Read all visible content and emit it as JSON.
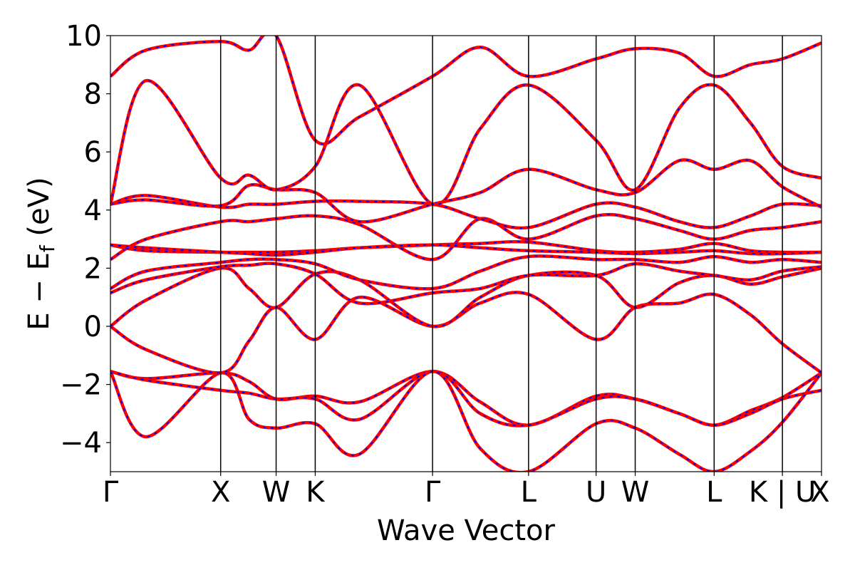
{
  "chart_data": {
    "type": "line",
    "xlabel": "Wave Vector",
    "ylabel": "E − E",
    "ylabel_sub": "f",
    "ylabel_unit": " (eV)",
    "ylim": [
      -5,
      10
    ],
    "xlim": [
      0,
      1
    ],
    "grid": false,
    "yticks": [
      {
        "value": 10,
        "label": "10"
      },
      {
        "value": 8,
        "label": "8"
      },
      {
        "value": 6,
        "label": "6"
      },
      {
        "value": 4,
        "label": "4"
      },
      {
        "value": 2,
        "label": "2"
      },
      {
        "value": 0,
        "label": "0"
      },
      {
        "value": -2,
        "label": "−2"
      },
      {
        "value": -4,
        "label": "−4"
      }
    ],
    "kpoints": [
      {
        "label": "Γ",
        "x": 0.0
      },
      {
        "label": "X",
        "x": 0.155
      },
      {
        "label": "W",
        "x": 0.233
      },
      {
        "label": "K",
        "x": 0.288
      },
      {
        "label": "Γ",
        "x": 0.453
      },
      {
        "label": "L",
        "x": 0.588
      },
      {
        "label": "U",
        "x": 0.683
      },
      {
        "label": "W",
        "x": 0.738
      },
      {
        "label": "L",
        "x": 0.849
      },
      {
        "label": "K | U",
        "x": 0.945
      },
      {
        "label": "X",
        "x": 1.0
      }
    ],
    "colors": {
      "band_solid": "#ff0000",
      "band_dashed": "#0000ff",
      "kline": "#000000"
    },
    "bands_x": [
      0.0,
      0.05,
      0.155,
      0.195,
      0.233,
      0.288,
      0.35,
      0.453,
      0.52,
      0.588,
      0.683,
      0.738,
      0.8,
      0.849,
      0.9,
      0.945,
      1.0
    ],
    "series": [
      {
        "values": [
          -1.55,
          -1.8,
          -1.6,
          -1.9,
          -2.5,
          -2.4,
          -2.6,
          -1.55,
          -2.6,
          -3.4,
          -2.4,
          -2.5,
          -3.0,
          -3.4,
          -2.9,
          -2.45,
          -1.6
        ]
      },
      {
        "values": [
          -1.55,
          -1.85,
          -2.2,
          -2.3,
          -2.5,
          -2.5,
          -3.2,
          -1.55,
          -3.0,
          -3.4,
          -2.5,
          -2.5,
          -3.0,
          -3.4,
          -3.0,
          -2.5,
          -2.2
        ]
      },
      {
        "values": [
          -1.55,
          -3.8,
          -1.6,
          -3.2,
          -3.5,
          -3.35,
          -4.4,
          -1.55,
          -4.2,
          -5.0,
          -3.35,
          -3.5,
          -4.4,
          -5.0,
          -4.3,
          -3.3,
          -1.6
        ]
      },
      {
        "values": [
          0.0,
          -0.8,
          -1.6,
          -0.5,
          0.65,
          -0.45,
          1.0,
          0.0,
          0.8,
          1.1,
          -0.45,
          0.65,
          0.8,
          1.1,
          0.4,
          -0.6,
          -1.6
        ]
      },
      {
        "values": [
          0.0,
          0.9,
          2.0,
          1.3,
          0.65,
          1.8,
          1.6,
          0.0,
          1.0,
          1.75,
          1.75,
          0.65,
          1.5,
          1.75,
          1.45,
          1.7,
          2.0
        ]
      },
      {
        "values": [
          1.15,
          1.6,
          2.05,
          2.1,
          2.15,
          1.8,
          0.8,
          1.15,
          1.3,
          1.75,
          1.75,
          2.15,
          1.9,
          1.75,
          1.6,
          1.9,
          2.05
        ]
      },
      {
        "values": [
          1.3,
          1.9,
          2.2,
          2.3,
          2.3,
          2.15,
          1.6,
          1.3,
          1.9,
          2.4,
          2.3,
          2.3,
          2.2,
          2.4,
          2.2,
          2.3,
          2.2
        ]
      },
      {
        "values": [
          2.3,
          3.0,
          3.6,
          3.6,
          3.7,
          3.8,
          3.5,
          2.3,
          3.7,
          3.0,
          3.8,
          3.7,
          3.3,
          3.0,
          3.3,
          3.4,
          3.6
        ]
      },
      {
        "values": [
          2.8,
          2.6,
          2.55,
          2.55,
          2.55,
          2.6,
          2.7,
          2.8,
          2.85,
          2.9,
          2.6,
          2.55,
          2.65,
          2.85,
          2.6,
          2.55,
          2.55
        ]
      },
      {
        "values": [
          2.8,
          2.7,
          2.55,
          2.5,
          2.45,
          2.55,
          2.7,
          2.8,
          2.7,
          2.6,
          2.55,
          2.5,
          2.55,
          2.6,
          2.5,
          2.5,
          2.55
        ]
      },
      {
        "values": [
          4.2,
          4.5,
          4.1,
          4.2,
          4.2,
          4.3,
          4.3,
          4.2,
          3.7,
          3.4,
          4.2,
          4.1,
          3.6,
          3.4,
          3.8,
          4.2,
          4.15
        ]
      },
      {
        "values": [
          4.2,
          4.35,
          4.15,
          4.85,
          4.7,
          4.6,
          3.6,
          4.2,
          4.6,
          5.4,
          4.7,
          4.6,
          5.7,
          5.4,
          5.7,
          4.8,
          4.1
        ]
      },
      {
        "values": [
          4.2,
          8.45,
          5.1,
          5.2,
          4.7,
          5.5,
          8.3,
          4.2,
          6.8,
          8.3,
          6.4,
          4.7,
          7.5,
          8.3,
          7.0,
          5.5,
          5.1
        ]
      },
      {
        "values": [
          8.6,
          9.5,
          9.8,
          9.5,
          10.0,
          6.4,
          7.2,
          8.6,
          9.6,
          8.6,
          9.2,
          9.55,
          9.4,
          8.6,
          9.0,
          9.2,
          9.75
        ]
      }
    ]
  }
}
